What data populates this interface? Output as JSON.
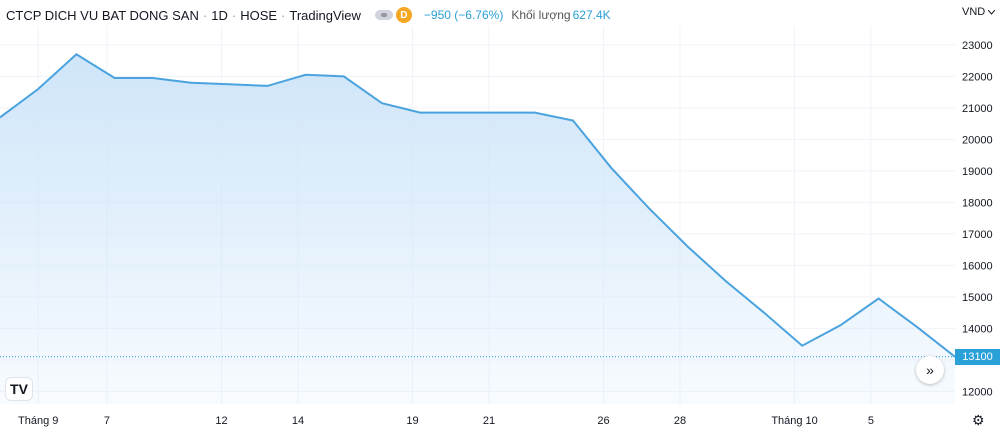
{
  "header": {
    "symbol": "CTCP DICH VU BAT DONG SAN",
    "interval": "1D",
    "exchange": "HOSE",
    "source": "TradingView",
    "badge": "D",
    "change": "−950 (−6.76%)",
    "volume_label": "Khối lượng",
    "volume_value": "627.4K"
  },
  "currency": {
    "label": "VND",
    "icon": "chevron-down-icon"
  },
  "logo": {
    "text": "TV"
  },
  "controls": {
    "goto_realtime": "»",
    "settings_icon": "gear-icon"
  },
  "chart_data": {
    "type": "area",
    "ylim": [
      11600,
      23600
    ],
    "y_ticks": [
      12000,
      13000,
      14000,
      15000,
      16000,
      17000,
      18000,
      19000,
      20000,
      21000,
      22000,
      23000
    ],
    "y_tick_labels": [
      "12000",
      "13000",
      "14000",
      "15000",
      "16000",
      "17000",
      "18000",
      "19000",
      "20000",
      "21000",
      "22000",
      "23000"
    ],
    "x_labels": [
      {
        "label": "Tháng 9",
        "index": 1
      },
      {
        "label": "7",
        "index": 2.8
      },
      {
        "label": "12",
        "index": 5.8
      },
      {
        "label": "14",
        "index": 7.8
      },
      {
        "label": "19",
        "index": 10.8
      },
      {
        "label": "21",
        "index": 12.8
      },
      {
        "label": "26",
        "index": 15.8
      },
      {
        "label": "28",
        "index": 17.8
      },
      {
        "label": "Tháng 10",
        "index": 20.8
      },
      {
        "label": "5",
        "index": 22.8
      }
    ],
    "values": [
      20700,
      21600,
      22700,
      21950,
      21950,
      21800,
      21750,
      21700,
      22050,
      22000,
      21150,
      20850,
      20850,
      20850,
      20850,
      20600,
      19100,
      17800,
      16600,
      15500,
      14500,
      13450,
      14100,
      14950,
      14050,
      13100
    ],
    "last_value": "13100",
    "colors": {
      "line": "#4aa3df",
      "fill": "#cfe5f9",
      "grid": "#f0f3fa",
      "last_label": "#29a0d8"
    }
  }
}
